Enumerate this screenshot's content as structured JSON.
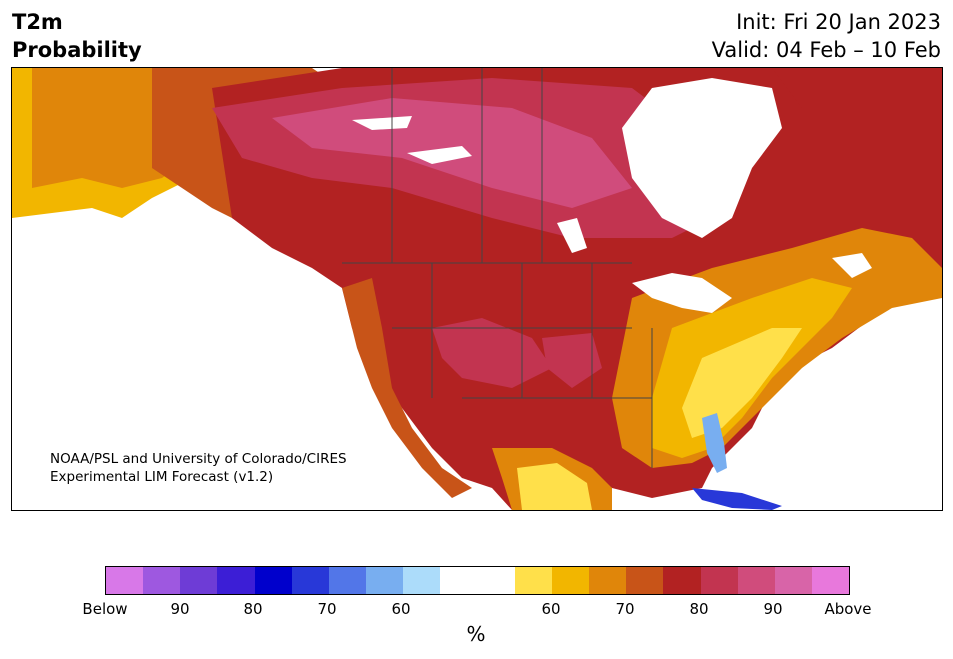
{
  "title": {
    "line1": "T2m",
    "line2": "Probability",
    "init": "Init: Fri 20 Jan 2023",
    "valid": "Valid: 04 Feb – 10 Feb"
  },
  "credit": {
    "line1": "NOAA/PSL and University of Colorado/CIRES",
    "line2": "Experimental LIM Forecast (v1.2)"
  },
  "colorbar": {
    "colors": [
      "#d878e8",
      "#9e58e0",
      "#6e3cd6",
      "#3c1ed6",
      "#0000cc",
      "#2838d8",
      "#5276e8",
      "#78aef0",
      "#acdcfa",
      "#ffffff",
      "#ffffff",
      "#ffe04a",
      "#f2b600",
      "#e0860a",
      "#c85418",
      "#b22222",
      "#c23450",
      "#d04c7c",
      "#d864a8",
      "#e878dc"
    ],
    "tick_labels": [
      "Below",
      "90",
      "80",
      "70",
      "60",
      "60",
      "70",
      "80",
      "90",
      "Above"
    ],
    "unit": "%"
  },
  "map": {
    "region": "North America",
    "legend_meaning": "Probability of above/below normal 2m temperature"
  }
}
